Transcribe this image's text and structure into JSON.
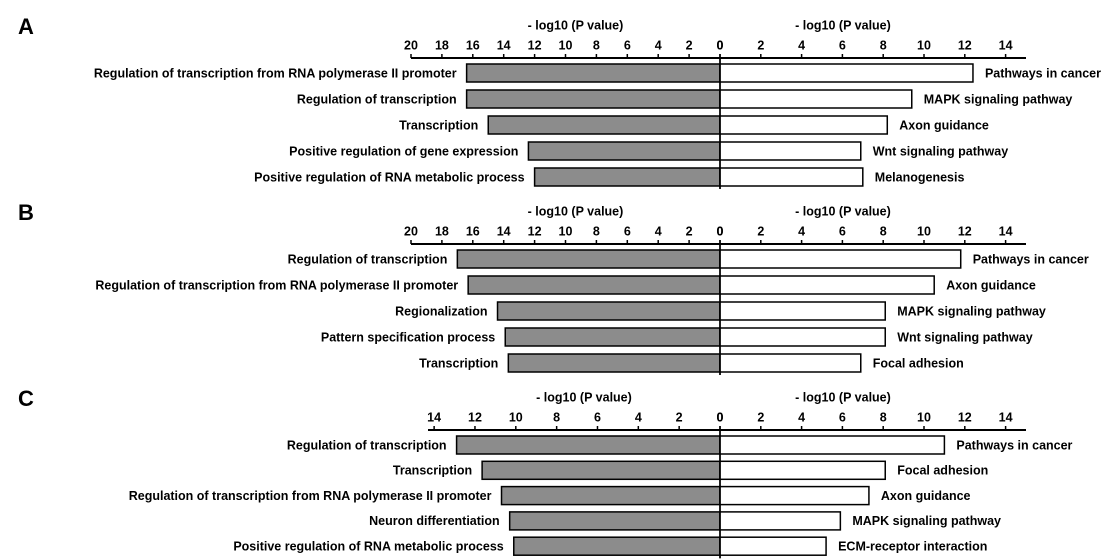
{
  "chart_data": [
    {
      "type": "bar",
      "orientation": "horizontal",
      "panel_label": "A",
      "xlabel": "- log10 (P value)",
      "color": "#8c8c8c",
      "categories": [
        "Regulation of transcription from RNA polymerase II promoter",
        "Regulation of transcription",
        "Transcription",
        "Positive regulation of gene expression",
        "Positive regulation of RNA metabolic process"
      ],
      "values": [
        16.4,
        16.4,
        15.0,
        12.4,
        12.0
      ],
      "xlim": [
        20,
        0
      ],
      "xticks": [
        20,
        18,
        16,
        14,
        12,
        10,
        8,
        6,
        4,
        2,
        0
      ]
    },
    {
      "type": "bar",
      "orientation": "horizontal",
      "xlabel": "- log10 (P value)",
      "color": "#ffffff",
      "categories": [
        "Pathways in cancer",
        "MAPK signaling pathway",
        "Axon guidance",
        "Wnt signaling pathway",
        "Melanogenesis"
      ],
      "values": [
        12.4,
        9.4,
        8.2,
        6.9,
        7.0
      ],
      "xlim": [
        0,
        15
      ],
      "xticks": [
        0,
        2,
        4,
        6,
        8,
        10,
        12,
        14
      ]
    },
    {
      "type": "bar",
      "orientation": "horizontal",
      "panel_label": "B",
      "xlabel": "- log10 (P value)",
      "color": "#8c8c8c",
      "categories": [
        "Regulation of transcription",
        "Regulation of transcription from RNA polymerase II promoter",
        "Regionalization",
        "Pattern specification process",
        "Transcription"
      ],
      "values": [
        17.0,
        16.3,
        14.4,
        13.9,
        13.7
      ],
      "xlim": [
        20,
        0
      ],
      "xticks": [
        20,
        18,
        16,
        14,
        12,
        10,
        8,
        6,
        4,
        2,
        0
      ]
    },
    {
      "type": "bar",
      "orientation": "horizontal",
      "xlabel": "- log10 (P value)",
      "color": "#ffffff",
      "categories": [
        "Pathways in cancer",
        "Axon guidance",
        "MAPK signaling pathway",
        "Wnt signaling pathway",
        "Focal adhesion"
      ],
      "values": [
        11.8,
        10.5,
        8.1,
        8.1,
        6.9
      ],
      "xlim": [
        0,
        15
      ],
      "xticks": [
        0,
        2,
        4,
        6,
        8,
        10,
        12,
        14
      ]
    },
    {
      "type": "bar",
      "orientation": "horizontal",
      "panel_label": "C",
      "xlabel": "- log10 (P value)",
      "color": "#8c8c8c",
      "categories": [
        "Regulation of transcription",
        "Transcription",
        "Regulation of transcription from RNA polymerase II promoter",
        "Neuron differentiation",
        "Positive regulation of RNA metabolic process"
      ],
      "values": [
        12.9,
        11.65,
        10.7,
        10.3,
        10.1
      ],
      "xlim": [
        14.3,
        0
      ],
      "xticks": [
        14,
        12,
        10,
        8,
        6,
        4,
        2,
        0
      ]
    },
    {
      "type": "bar",
      "orientation": "horizontal",
      "xlabel": "- log10 (P value)",
      "color": "#ffffff",
      "categories": [
        "Pathways in cancer",
        "Focal adhesion",
        "Axon guidance",
        "MAPK signaling pathway",
        "ECM-receptor interaction"
      ],
      "values": [
        11.0,
        8.1,
        7.3,
        5.9,
        5.2
      ],
      "xlim": [
        0,
        15
      ],
      "xticks": [
        0,
        2,
        4,
        6,
        8,
        10,
        12,
        14
      ]
    }
  ]
}
